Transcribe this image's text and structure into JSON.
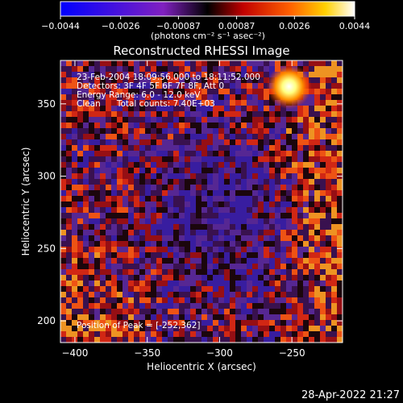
{
  "chart_data": {
    "type": "heatmap",
    "title": "Reconstructed RHESSI Image",
    "xlabel": "Heliocentric X (arcsec)",
    "ylabel": "Heliocentric Y (arcsec)",
    "xlim": [
      -410,
      -215
    ],
    "ylim": [
      185,
      380
    ],
    "x_ticks": [
      -400,
      -350,
      -300,
      -250
    ],
    "y_ticks": [
      200,
      250,
      300,
      350
    ],
    "colorbar": {
      "range": [
        -0.0044,
        0.0044
      ],
      "ticks": [
        -0.0044,
        -0.0026,
        -0.00087,
        0.00087,
        0.0026,
        0.0044
      ],
      "tick_labels": [
        "−0.0044",
        "−0.0026",
        "−0.00087",
        "0.00087",
        "0.0026",
        "0.0044"
      ],
      "unit_label": "(photons cm⁻² s⁻¹ asec⁻²)"
    },
    "annotations": [
      "23-Feb-2004 18:09:56.000 to 18:11:52.000",
      "Detectors: 3F 4F 5F 6F 7F 8F, Att 0",
      "Energy Range: 6.0 - 12.0 keV",
      "Clean      Total counts: 7.40E+03"
    ],
    "peak_label": "Position of Peak = [-252,362]",
    "peak": {
      "x": -252,
      "y": 362
    },
    "grid": false
  },
  "footer_date": "28-Apr-2022 21:27"
}
